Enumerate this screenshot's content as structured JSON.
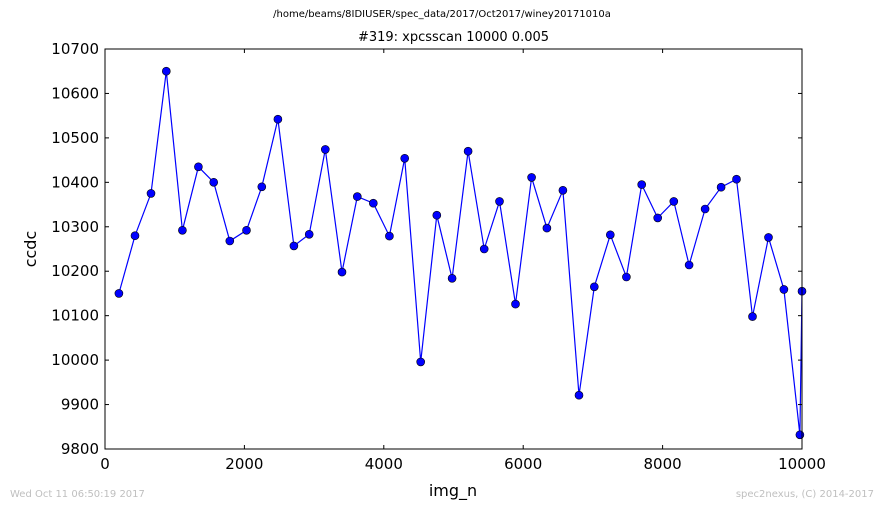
{
  "suptitle": "/home/beams/8IDIUSER/spec_data/2017/Oct2017/winey20171010a",
  "footer": {
    "timestamp": "Wed Oct 11 06:50:19 2017",
    "credit": "spec2nexus, (C) 2014-2017"
  },
  "colors": {
    "series": "#0000ff",
    "footer_text": "#bfbfbf"
  },
  "chart_data": {
    "type": "line",
    "title": "#319: xpcsscan 10000 0.005",
    "xlabel": "img_n",
    "ylabel": "ccdc",
    "xlim": [
      0,
      10000
    ],
    "ylim": [
      9800,
      10700
    ],
    "xticks": [
      0,
      2000,
      4000,
      6000,
      8000,
      10000
    ],
    "yticks": [
      9800,
      9900,
      10000,
      10100,
      10200,
      10300,
      10400,
      10500,
      10600,
      10700
    ],
    "grid": false,
    "series": [
      {
        "marker": "circle",
        "x": [
          200,
          430,
          660,
          880,
          1110,
          1340,
          1560,
          1790,
          2030,
          2250,
          2480,
          2710,
          2930,
          3160,
          3400,
          3620,
          3850,
          4080,
          4300,
          4530,
          4760,
          4980,
          5210,
          5440,
          5660,
          5890,
          6120,
          6340,
          6570,
          6800,
          7020,
          7250,
          7480,
          7700,
          7930,
          8160,
          8380,
          8610,
          8840,
          9060,
          9290,
          9520,
          9740,
          9970,
          10000
        ],
        "y": [
          10150,
          10280,
          10375,
          10650,
          10292,
          10435,
          10400,
          10268,
          10292,
          10390,
          10542,
          10257,
          10283,
          10474,
          10198,
          10368,
          10353,
          10279,
          10454,
          9996,
          10326,
          10184,
          10470,
          10250,
          10357,
          10126,
          10411,
          10297,
          10382,
          9921,
          10165,
          10282,
          10187,
          10395,
          10320,
          10357,
          10214,
          10340,
          10389,
          10407,
          10098,
          10276,
          10159,
          9832,
          10155
        ]
      }
    ]
  }
}
